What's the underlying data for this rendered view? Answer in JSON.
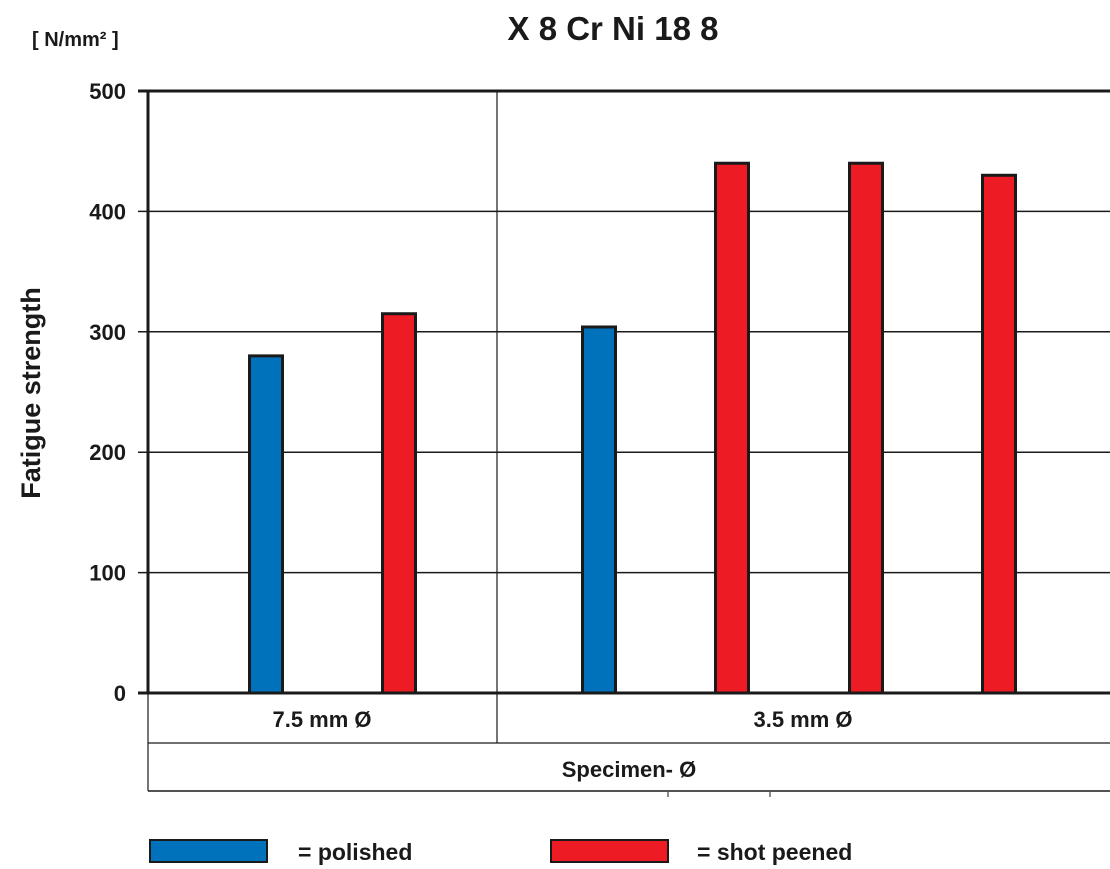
{
  "chart_data": {
    "type": "bar",
    "title": "X 8 Cr Ni 18 8",
    "unit_label": "[ N/mm² ]",
    "ylabel": "Fatigue strength",
    "xlabel": "Specimen- Ø",
    "ylim": [
      0,
      500
    ],
    "yticks": [
      "0",
      "100",
      "200",
      "300",
      "400",
      "500"
    ],
    "grid": true,
    "groups": [
      {
        "label": "7.5 mm Ø",
        "bars": [
          {
            "series": "polished",
            "value": 280
          },
          {
            "series": "shot peened",
            "value": 315
          }
        ]
      },
      {
        "label": "3.5 mm Ø",
        "bars": [
          {
            "series": "polished",
            "value": 304
          },
          {
            "series": "shot peened",
            "value": 440
          },
          {
            "series": "shot peened",
            "value": 440
          },
          {
            "series": "shot peened",
            "value": 430
          }
        ]
      }
    ],
    "legend": {
      "placement": "bottom",
      "items": [
        {
          "series": "polished",
          "label": "= polished",
          "color": "#0072bc"
        },
        {
          "series": "shot peened",
          "label": "= shot peened",
          "color": "#ed1c24"
        }
      ]
    }
  }
}
